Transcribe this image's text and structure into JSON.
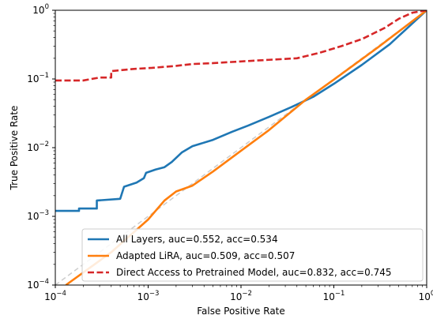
{
  "chart_data": {
    "type": "line",
    "xlabel": "False Positive Rate",
    "ylabel": "True Positive Rate",
    "xscale": "log",
    "yscale": "log",
    "xlim": [
      0.0001,
      1
    ],
    "ylim": [
      0.0001,
      1
    ],
    "x_ticks": [
      {
        "value": 0.0001,
        "base": "10",
        "exp": "−4"
      },
      {
        "value": 0.001,
        "base": "10",
        "exp": "−3"
      },
      {
        "value": 0.01,
        "base": "10",
        "exp": "−2"
      },
      {
        "value": 0.1,
        "base": "10",
        "exp": "−1"
      },
      {
        "value": 1,
        "base": "10",
        "exp": "0"
      }
    ],
    "y_ticks": [
      {
        "value": 0.0001,
        "base": "10",
        "exp": "−4"
      },
      {
        "value": 0.001,
        "base": "10",
        "exp": "−3"
      },
      {
        "value": 0.01,
        "base": "10",
        "exp": "−2"
      },
      {
        "value": 0.1,
        "base": "10",
        "exp": "−1"
      },
      {
        "value": 1,
        "base": "10",
        "exp": "0"
      }
    ],
    "legend_position": "lower-right",
    "grid": false,
    "reference_line": {
      "style": "dashed",
      "color": "#cccccc",
      "x": [
        0.0001,
        1
      ],
      "y": [
        0.0001,
        1
      ]
    },
    "series": [
      {
        "name": "All Layers, auc=0.552, acc=0.534",
        "color": "#1f77b4",
        "style": "solid",
        "x": [
          0.0001,
          0.00018,
          0.00018,
          0.00028,
          0.00028,
          0.0005,
          0.00055,
          0.00075,
          0.0009,
          0.00095,
          0.0012,
          0.0015,
          0.0018,
          0.0023,
          0.003,
          0.005,
          0.008,
          0.012,
          0.02,
          0.035,
          0.06,
          0.1,
          0.2,
          0.4,
          1
        ],
        "y": [
          0.0012,
          0.0012,
          0.0013,
          0.0013,
          0.0017,
          0.0018,
          0.0027,
          0.0031,
          0.0036,
          0.0043,
          0.0048,
          0.0052,
          0.0062,
          0.0085,
          0.0105,
          0.013,
          0.017,
          0.021,
          0.028,
          0.039,
          0.055,
          0.085,
          0.16,
          0.32,
          1.0
        ]
      },
      {
        "name": "Adapted LiRA, auc=0.509, acc=0.507",
        "color": "#ff7f0e",
        "style": "solid",
        "x": [
          0.00013,
          0.0004,
          0.001,
          0.0015,
          0.002,
          0.003,
          0.005,
          0.01,
          0.02,
          0.05,
          0.1,
          0.3,
          1
        ],
        "y": [
          0.0001,
          0.0003,
          0.0009,
          0.0017,
          0.0023,
          0.0028,
          0.0045,
          0.009,
          0.018,
          0.05,
          0.098,
          0.29,
          1.0
        ]
      },
      {
        "name": "Direct Access to Pretrained Model, auc=0.832, acc=0.745",
        "color": "#d62728",
        "style": "dashed",
        "x": [
          0.0001,
          0.0002,
          0.0003,
          0.0004,
          0.0004,
          0.0007,
          0.0011,
          0.002,
          0.003,
          0.005,
          0.01,
          0.02,
          0.04,
          0.07,
          0.12,
          0.2,
          0.35,
          0.5,
          0.7,
          1
        ],
        "y": [
          0.095,
          0.095,
          0.105,
          0.105,
          0.13,
          0.14,
          0.145,
          0.155,
          0.165,
          0.17,
          0.18,
          0.19,
          0.2,
          0.24,
          0.3,
          0.38,
          0.55,
          0.75,
          0.92,
          1.0
        ]
      }
    ]
  }
}
